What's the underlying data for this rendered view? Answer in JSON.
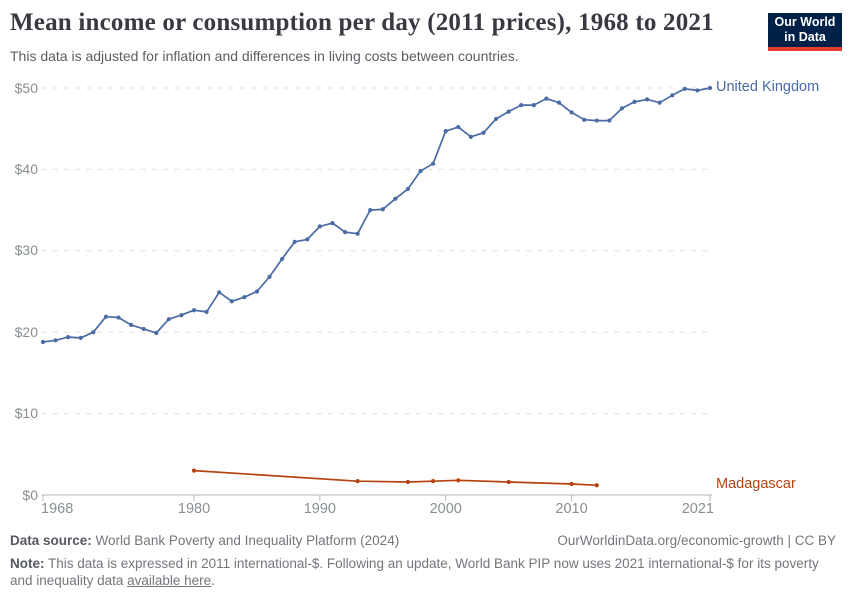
{
  "header": {
    "title": "Mean income or consumption per day (2011 prices), 1968 to 2021",
    "subtitle": "This data is adjusted for inflation and differences in living costs between countries.",
    "logo": {
      "line1": "Our World",
      "line2": "in Data",
      "bg_color": "#002147",
      "accent_color": "#e13d33"
    }
  },
  "chart_data": {
    "type": "line",
    "title": "Mean income or consumption per day (2011 prices), 1968 to 2021",
    "xlabel": "",
    "ylabel": "",
    "xlim": [
      1968,
      2021
    ],
    "ylim": [
      0,
      50
    ],
    "x_ticks": [
      1968,
      1980,
      1990,
      2000,
      2010,
      2021
    ],
    "y_ticks": [
      0,
      10,
      20,
      30,
      40,
      50
    ],
    "y_tick_labels": [
      "$0",
      "$10",
      "$20",
      "$30",
      "$40",
      "$50"
    ],
    "grid": "horizontal dashed gridlines, solid baseline at $0",
    "legend_position": "labels at right end of lines",
    "axis_color": "#b3b7ba",
    "gridline_color": "#e1e1e1",
    "series": [
      {
        "name": "United Kingdom",
        "color": "#4a6ba3",
        "x": [
          1968,
          1969,
          1970,
          1971,
          1972,
          1973,
          1974,
          1975,
          1976,
          1977,
          1978,
          1979,
          1980,
          1981,
          1982,
          1983,
          1984,
          1985,
          1986,
          1987,
          1988,
          1989,
          1990,
          1991,
          1992,
          1993,
          1994,
          1995,
          1996,
          1997,
          1998,
          1999,
          2000,
          2001,
          2002,
          2003,
          2004,
          2005,
          2006,
          2007,
          2008,
          2009,
          2010,
          2011,
          2012,
          2013,
          2014,
          2015,
          2016,
          2017,
          2018,
          2019,
          2020,
          2021
        ],
        "values": [
          18.8,
          19.0,
          19.4,
          19.3,
          20.0,
          21.9,
          21.8,
          20.9,
          20.4,
          19.9,
          21.6,
          22.1,
          22.7,
          22.5,
          24.9,
          23.8,
          24.3,
          25.0,
          26.8,
          29.0,
          31.1,
          31.4,
          33.0,
          33.4,
          32.3,
          32.1,
          35.0,
          35.1,
          36.4,
          37.6,
          39.8,
          40.7,
          44.7,
          45.2,
          44.0,
          44.5,
          46.2,
          47.1,
          47.9,
          47.9,
          48.7,
          48.2,
          47.0,
          46.1,
          46.0,
          46.0,
          47.5,
          48.3,
          48.6,
          48.2,
          49.1,
          49.9,
          49.7,
          50.0
        ]
      },
      {
        "name": "Madagascar",
        "color": "#b5430f",
        "x": [
          1980,
          1993,
          1997,
          1999,
          2001,
          2005,
          2010,
          2012
        ],
        "values": [
          3.0,
          1.7,
          1.6,
          1.7,
          1.8,
          1.6,
          1.35,
          1.2
        ]
      }
    ]
  },
  "footer": {
    "source_label": "Data source:",
    "source_text": "World Bank Poverty and Inequality Platform (2024)",
    "attribution": "OurWorldinData.org/economic-growth | CC BY",
    "note_label": "Note:",
    "note_before_link": "This data is expressed in 2011 international-$. Following an update, World Bank PIP now uses 2021 international-$ for its poverty and inequality data ",
    "note_link": "available here",
    "note_suffix": "."
  }
}
